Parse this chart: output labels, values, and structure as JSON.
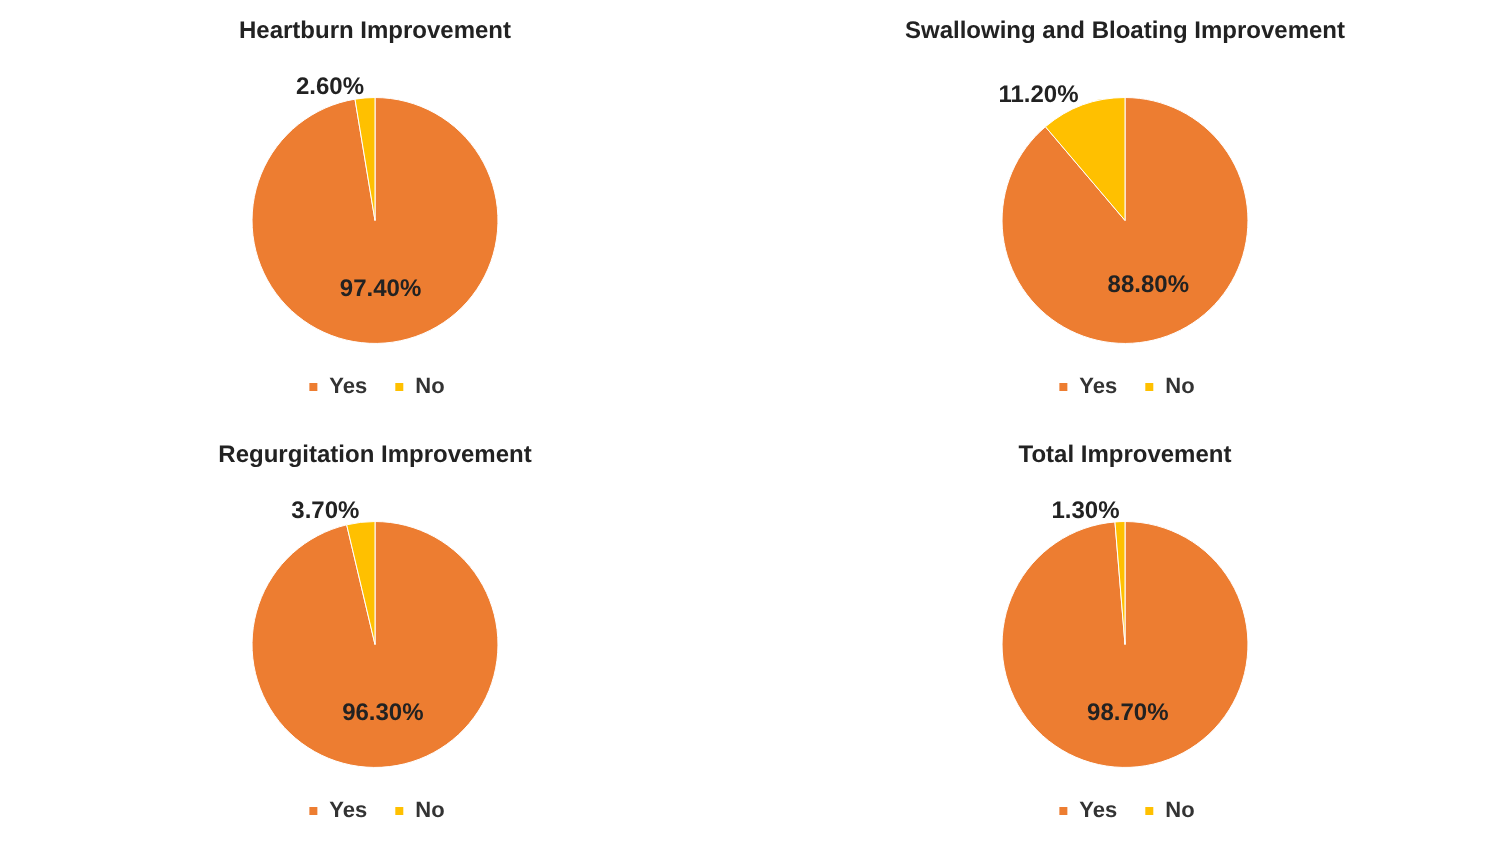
{
  "chart_data": [
    {
      "type": "pie",
      "title": "Heartburn Improvement",
      "categories": [
        "Yes",
        "No"
      ],
      "values": [
        97.4,
        2.6
      ],
      "colors": [
        "#ed7d31",
        "#ffc000"
      ],
      "value_labels": [
        "97.40%",
        "2.60%"
      ],
      "legend": "bottom"
    },
    {
      "type": "pie",
      "title": "Swallowing and Bloating Improvement",
      "categories": [
        "Yes",
        "No"
      ],
      "values": [
        88.8,
        11.2
      ],
      "colors": [
        "#ed7d31",
        "#ffc000"
      ],
      "value_labels": [
        "88.80%",
        "11.20%"
      ],
      "legend": "bottom"
    },
    {
      "type": "pie",
      "title": "Regurgitation Improvement",
      "categories": [
        "Yes",
        "No"
      ],
      "values": [
        96.3,
        3.7
      ],
      "colors": [
        "#ed7d31",
        "#ffc000"
      ],
      "value_labels": [
        "96.30%",
        "3.70%"
      ],
      "legend": "bottom"
    },
    {
      "type": "pie",
      "title": "Total Improvement",
      "categories": [
        "Yes",
        "No"
      ],
      "values": [
        98.7,
        1.3
      ],
      "colors": [
        "#ed7d31",
        "#ffc000"
      ],
      "value_labels": [
        "98.70%",
        "1.30%"
      ],
      "legend": "bottom"
    }
  ]
}
